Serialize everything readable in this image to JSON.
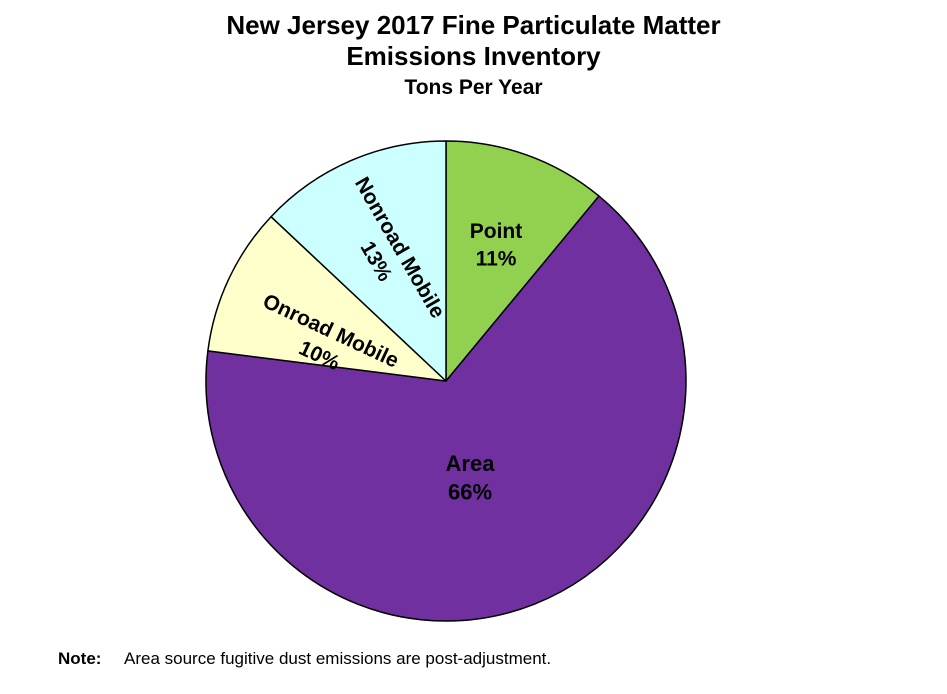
{
  "chart_data": {
    "type": "pie",
    "title_lines": [
      "New Jersey 2017 Fine Particulate Matter",
      "Emissions Inventory"
    ],
    "subtitle": "Tons Per Year",
    "slices": [
      {
        "label": "Point",
        "value": 11,
        "value_label": "11%",
        "color": "#92d050",
        "label_color": "#000000"
      },
      {
        "label": "Area",
        "value": 66,
        "value_label": "66%",
        "color": "#7030a0",
        "label_color": "#ffffff"
      },
      {
        "label": "Onroad Mobile",
        "value": 10,
        "value_label": "10%",
        "color": "#ffffcc",
        "label_color": "#000000"
      },
      {
        "label": "Nonroad Mobile",
        "value": 13,
        "value_label": "13%",
        "color": "#ccffff",
        "label_color": "#000000"
      }
    ],
    "start_angle": "12 o'clock",
    "direction": "clockwise",
    "edge_color": "#000000",
    "legend": "none"
  },
  "note": {
    "label": "Note:",
    "text": "Area source fugitive dust emissions are post-adjustment."
  }
}
